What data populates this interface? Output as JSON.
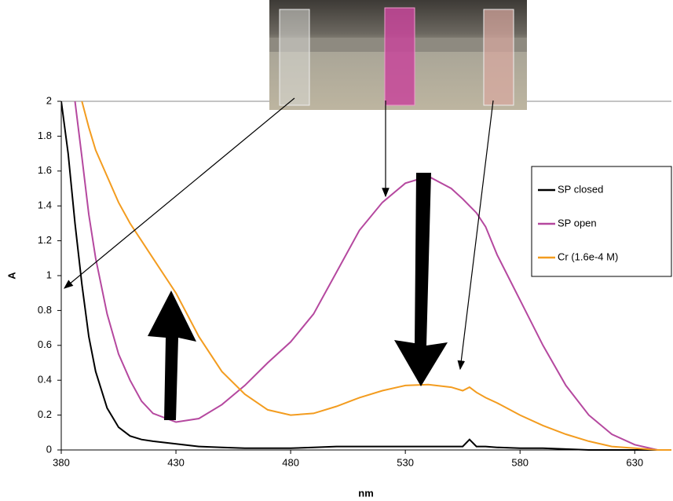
{
  "chart_data": {
    "type": "line",
    "x_label": "nm",
    "y_label": "A",
    "x": [
      380,
      383,
      386,
      389,
      392,
      395,
      400,
      405,
      410,
      415,
      420,
      430,
      440,
      450,
      460,
      470,
      480,
      490,
      500,
      510,
      520,
      530,
      540,
      550,
      555,
      558,
      561,
      565,
      570,
      580,
      590,
      600,
      610,
      620,
      630,
      640,
      646
    ],
    "series": [
      {
        "name": "SP closed",
        "color": "#000000",
        "values": [
          2.0,
          1.7,
          1.3,
          0.95,
          0.65,
          0.45,
          0.24,
          0.13,
          0.08,
          0.06,
          0.05,
          0.035,
          0.02,
          0.015,
          0.01,
          0.01,
          0.01,
          0.015,
          0.02,
          0.02,
          0.02,
          0.02,
          0.02,
          0.02,
          0.02,
          0.06,
          0.02,
          0.02,
          0.015,
          0.01,
          0.01,
          0.005,
          0,
          0,
          0,
          0,
          0
        ]
      },
      {
        "name": "SP open",
        "color": "#b5489f",
        "values": [
          null,
          null,
          2.0,
          1.68,
          1.35,
          1.1,
          0.78,
          0.55,
          0.4,
          0.28,
          0.21,
          0.16,
          0.18,
          0.26,
          0.37,
          0.5,
          0.62,
          0.78,
          1.02,
          1.26,
          1.42,
          1.53,
          1.57,
          1.5,
          1.44,
          1.4,
          1.36,
          1.28,
          1.12,
          0.86,
          0.6,
          0.37,
          0.2,
          0.09,
          0.03,
          0,
          0
        ]
      },
      {
        "name": "Cr (1.6e-4 M)",
        "color": "#f39c1f",
        "values": [
          null,
          null,
          null,
          2.0,
          1.85,
          1.72,
          1.57,
          1.42,
          1.3,
          1.2,
          1.1,
          0.9,
          0.65,
          0.45,
          0.32,
          0.23,
          0.2,
          0.21,
          0.25,
          0.3,
          0.34,
          0.37,
          0.375,
          0.36,
          0.34,
          0.36,
          0.33,
          0.3,
          0.27,
          0.2,
          0.14,
          0.09,
          0.05,
          0.02,
          0.01,
          0,
          0
        ]
      }
    ],
    "xlim": [
      380,
      646
    ],
    "ylim": [
      0,
      2
    ],
    "xticks": [
      380,
      430,
      480,
      530,
      580,
      630
    ],
    "yticks": [
      0,
      0.2,
      0.4,
      0.6,
      0.8,
      1,
      1.2,
      1.4,
      1.6,
      1.8,
      2
    ],
    "grid": false
  }
}
